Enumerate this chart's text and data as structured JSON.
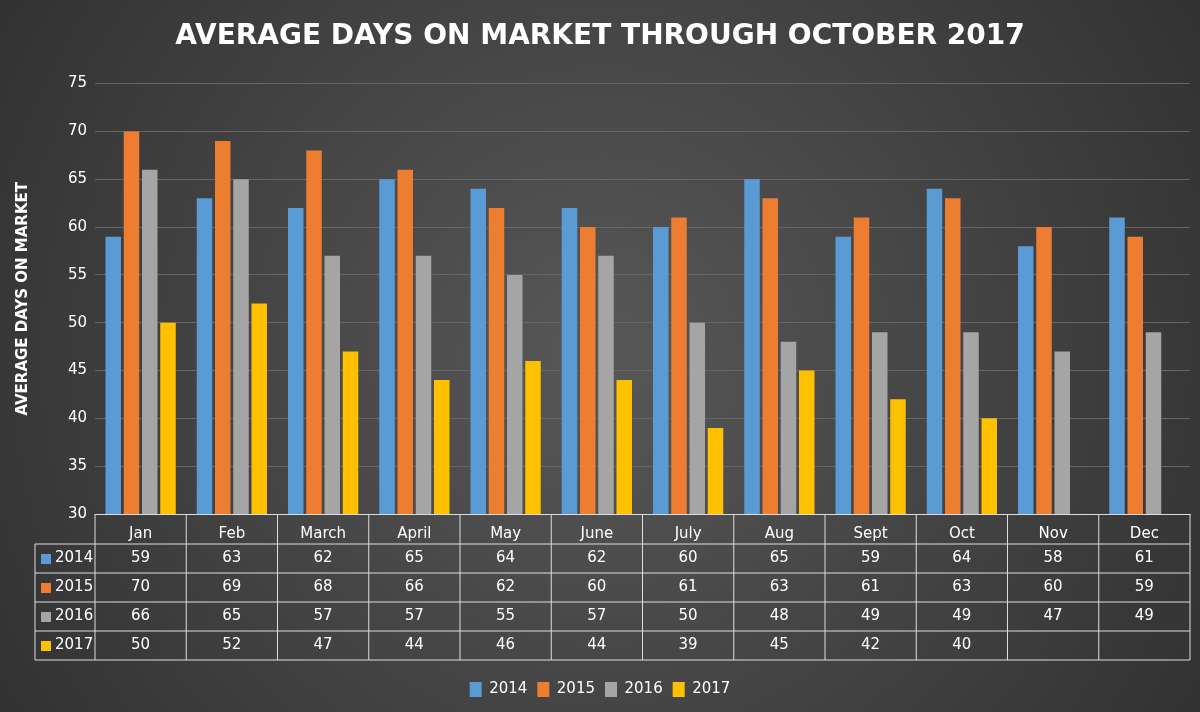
{
  "chart_data": {
    "type": "bar",
    "title": "AVERAGE DAYS ON MARKET THROUGH OCTOBER 2017",
    "ylabel": "AVERAGE DAYS ON MARKET",
    "categories": [
      "Jan",
      "Feb",
      "March",
      "April",
      "May",
      "June",
      "July",
      "Aug",
      "Sept",
      "Oct",
      "Nov",
      "Dec"
    ],
    "series": [
      {
        "name": "2014",
        "color": "#5b9bd5",
        "values": [
          59,
          63,
          62,
          65,
          64,
          62,
          60,
          65,
          59,
          64,
          58,
          61
        ]
      },
      {
        "name": "2015",
        "color": "#ed7d31",
        "values": [
          70,
          69,
          68,
          66,
          62,
          60,
          61,
          63,
          61,
          63,
          60,
          59
        ]
      },
      {
        "name": "2016",
        "color": "#a5a5a5",
        "values": [
          66,
          65,
          57,
          57,
          55,
          57,
          50,
          48,
          49,
          49,
          47,
          49
        ]
      },
      {
        "name": "2017",
        "color": "#ffc000",
        "values": [
          50,
          52,
          47,
          44,
          46,
          44,
          39,
          45,
          42,
          40,
          null,
          null
        ]
      }
    ],
    "ylim": [
      30,
      75
    ],
    "yticks": [
      30,
      35,
      40,
      45,
      50,
      55,
      60,
      65,
      70,
      75
    ],
    "grid": "y",
    "legend": "bottom",
    "data_labels": true
  }
}
